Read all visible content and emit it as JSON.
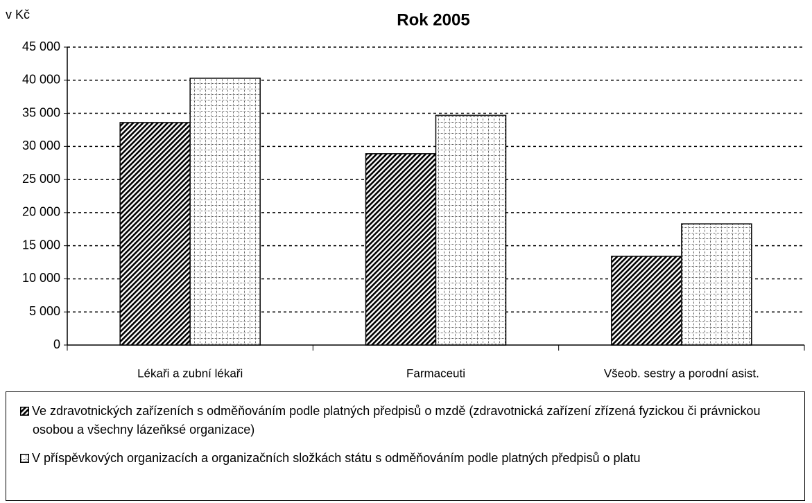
{
  "chart_data": {
    "type": "bar",
    "title": "Rok 2005",
    "y_axis_label": "v Kč",
    "categories": [
      "Lékaři a zubní lékaři",
      "Farmaceuti",
      "Všeob. sestry a porodní asist."
    ],
    "series": [
      {
        "name": "Ve zdravotnických zařízeních s odměňováním podle platných předpisů o mzdě (zdravotnická zařízení zřízená fyzickou či právnickou osobou a všechny lázeňksé organizace)",
        "color": "#000000",
        "pattern": "hatch",
        "values": [
          33600,
          28900,
          13400
        ]
      },
      {
        "name": "V příspěvkových organizacích a organizačních složkách státu s odměňováním podle platných předpisů o platu",
        "color": "#000000",
        "pattern": "grid",
        "values": [
          40300,
          34700,
          18300
        ]
      }
    ],
    "ylim": [
      0,
      45000
    ],
    "yticks": [
      0,
      {
        "value": 5000,
        "label": "5 000"
      },
      {
        "value": 10000,
        "label": "10 000"
      },
      {
        "value": 15000,
        "label": "15 000"
      },
      {
        "value": 20000,
        "label": "20 000"
      },
      {
        "value": 25000,
        "label": "25 000"
      },
      {
        "value": 30000,
        "label": "30 000"
      },
      {
        "value": 35000,
        "label": "35 000"
      },
      {
        "value": 40000,
        "label": "40 000"
      },
      {
        "value": 45000,
        "label": "45 000"
      }
    ],
    "grid": true
  }
}
